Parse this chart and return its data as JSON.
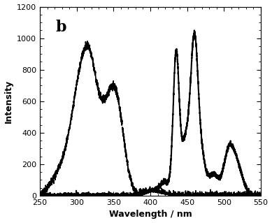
{
  "title_label": "b",
  "xlabel": "Wavelength / nm",
  "ylabel": "Intensity",
  "xlim": [
    250,
    550
  ],
  "ylim": [
    0,
    1200
  ],
  "xticks": [
    250,
    300,
    350,
    400,
    450,
    500,
    550
  ],
  "yticks": [
    0,
    200,
    400,
    600,
    800,
    1000,
    1200
  ],
  "dashed_color": "#000000",
  "solid_color": "#000000",
  "bg_color": "#ffffff",
  "dashed_linewidth": 1.2,
  "solid_linewidth": 1.5,
  "title_fontsize": 16,
  "label_fontsize": 9,
  "tick_fontsize": 8
}
